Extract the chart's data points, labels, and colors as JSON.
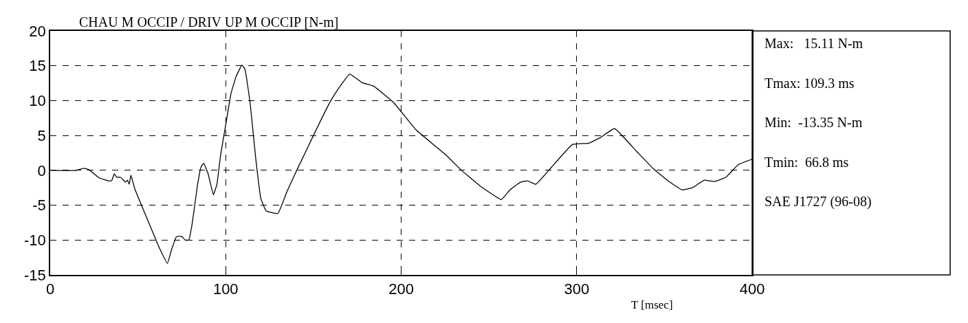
{
  "chart_data": {
    "type": "line",
    "title": "CHAU M OCCIP / DRIV UP M OCCIP [N-m]",
    "xlabel": "T [msec]",
    "x": [
      0,
      15,
      19,
      22,
      28,
      33,
      35,
      36.5,
      38,
      40,
      43,
      44,
      45,
      46,
      48,
      52,
      57,
      62,
      66.8,
      69,
      72,
      75,
      77,
      79,
      81,
      84,
      86,
      87.5,
      90,
      93,
      95,
      97,
      100,
      103,
      106,
      109.3,
      111,
      114,
      117,
      120,
      123,
      129.7,
      135,
      140.5,
      150,
      159.7,
      165,
      170.7,
      177.6,
      184.2,
      195.8,
      208.5,
      225.5,
      234.4,
      244.8,
      257.1,
      262,
      268,
      272,
      276.7,
      285.5,
      297.5,
      307,
      313.5,
      321.6,
      334.2,
      343.8,
      352,
      360,
      366,
      372.7,
      378.5,
      385,
      392,
      400
    ],
    "series": [
      {
        "color": "#000000",
        "values": [
          0,
          0,
          0.3,
          0.1,
          -1.1,
          -1.5,
          -1.5,
          -0.5,
          -1.0,
          -1.0,
          -1.7,
          -1.4,
          -2.0,
          -0.7,
          -2.5,
          -5,
          -8.0,
          -11.0,
          -13.35,
          -11.5,
          -9.5,
          -9.5,
          -10,
          -10,
          -7.5,
          -2.0,
          0.5,
          1.0,
          -0.5,
          -3.5,
          -2,
          2,
          6.5,
          11,
          13.5,
          15.11,
          14.5,
          9.5,
          2,
          -4,
          -5.8,
          -6.2,
          -3.0,
          0,
          5,
          9.9,
          12.0,
          13.8,
          12.6,
          12.1,
          9.7,
          5.8,
          2.2,
          0,
          -2.2,
          -4.2,
          -2.8,
          -1.7,
          -1.5,
          -2.0,
          0.4,
          3.7,
          3.9,
          4.7,
          6.0,
          2.7,
          0.2,
          -1.5,
          -2.8,
          -2.5,
          -1.4,
          -1.6,
          -1.0,
          0.8,
          1.6
        ]
      }
    ],
    "xlim": [
      0,
      400
    ],
    "xticks": [
      0,
      100,
      200,
      300,
      400
    ],
    "ylim": [
      -15,
      20
    ],
    "yticks": [
      -15,
      -10,
      -5,
      0,
      5,
      10,
      15,
      20
    ],
    "grid": true,
    "line_style": "solid",
    "marker": "none",
    "annotations": [
      "Max:   15.11 N-m",
      "Tmax: 109.3 ms",
      "Min:  -13.35 N-m",
      "Tmin:  66.8 ms",
      "SAE J1727 (96-08)"
    ]
  }
}
